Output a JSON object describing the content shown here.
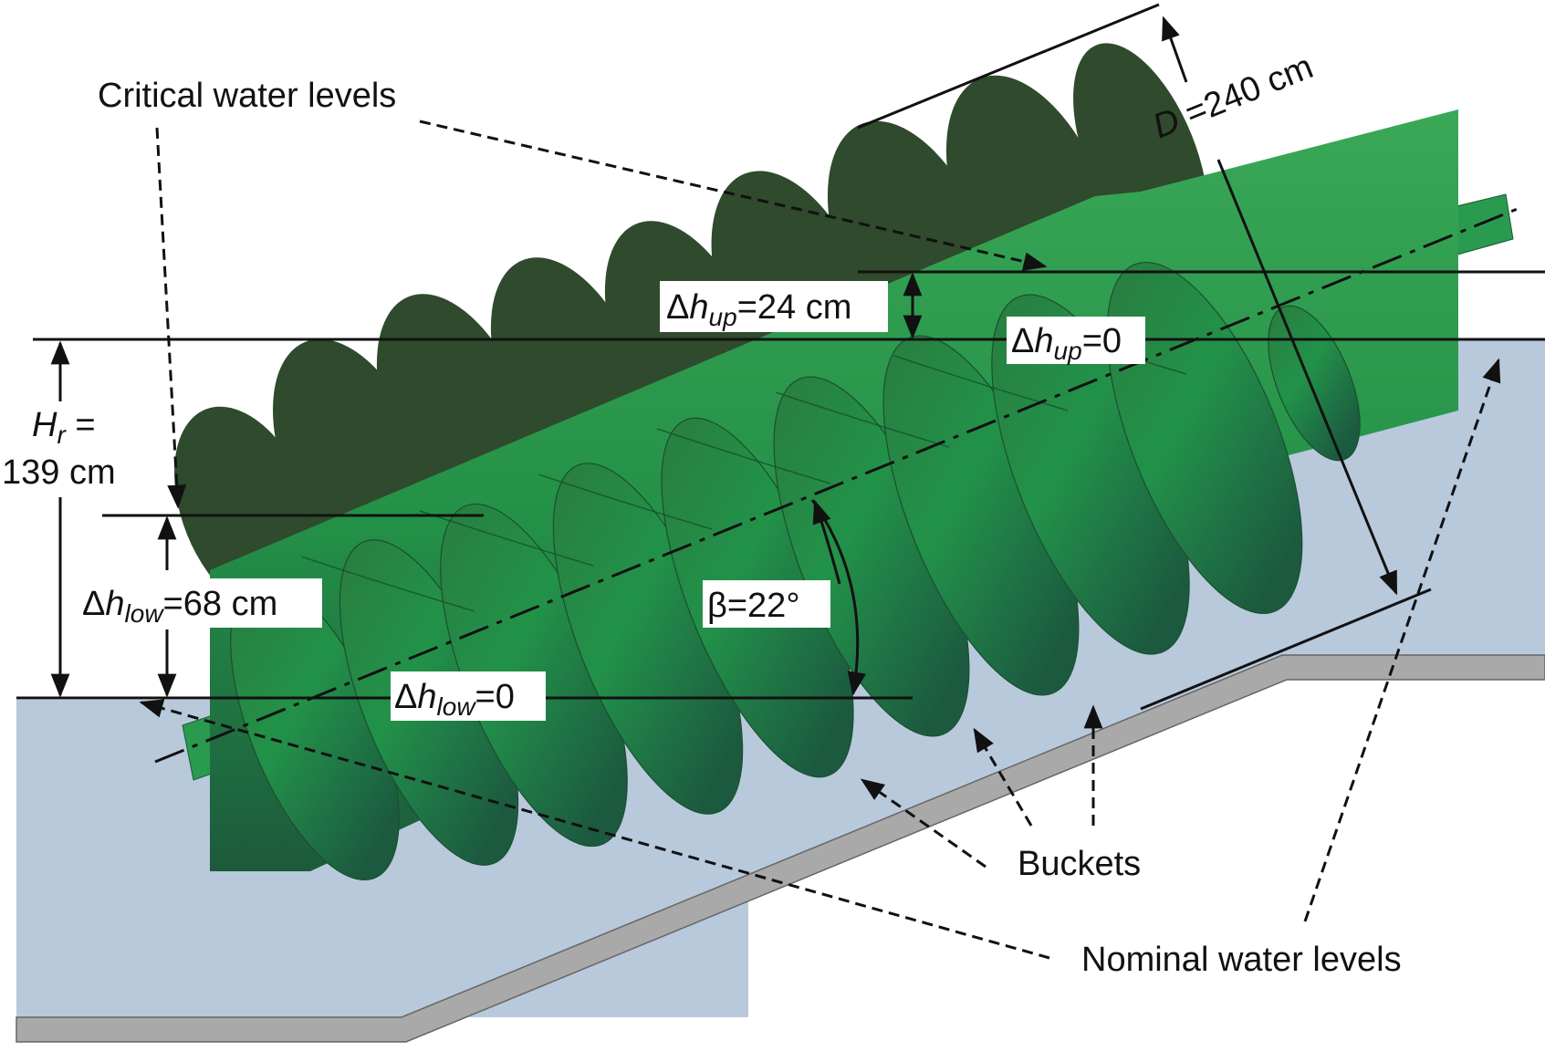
{
  "labels": {
    "critical_water_levels": "Critical water levels",
    "nominal_water_levels": "Nominal water levels",
    "buckets": "Buckets",
    "diameter": {
      "symbol": "D",
      "rest": " =240 cm"
    },
    "dh_up_24": {
      "delta": "Δ",
      "h": "h",
      "sub": "up",
      "rest": "=24 cm"
    },
    "dh_up_0": {
      "delta": "Δ",
      "h": "h",
      "sub": "up",
      "rest": "=0"
    },
    "hr": {
      "symbol": "H",
      "sub": "r",
      "rest": " =",
      "line2": "139 cm"
    },
    "dh_low_68": {
      "delta": "Δ",
      "h": "h",
      "sub": "low",
      "rest": "=68 cm"
    },
    "dh_low_0": {
      "delta": "Δ",
      "h": "h",
      "sub": "low",
      "rest": "=0"
    },
    "beta": "β=22°"
  },
  "colors": {
    "water": "#b8c9dc",
    "trough": "#aaaaaa",
    "screw_light": "#2e9a4e",
    "screw_dark": "#1f5e33",
    "blade_back": "#2f4a2c"
  }
}
